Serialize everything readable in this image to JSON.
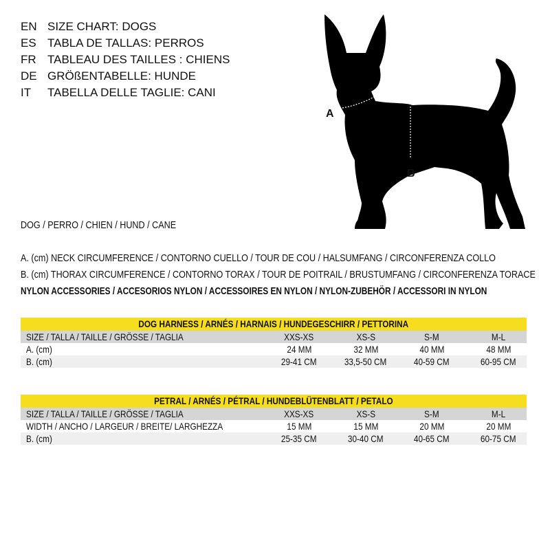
{
  "titles": [
    {
      "code": "EN",
      "text": "SIZE CHART: DOGS"
    },
    {
      "code": "ES",
      "text": "TABLA DE TALLAS: PERROS"
    },
    {
      "code": "FR",
      "text": "TABLEAU DES TAILLES : CHIENS"
    },
    {
      "code": "DE",
      "text": "GRÖßENTABELLE: HUNDE"
    },
    {
      "code": "IT",
      "text": "TABELLA DELLE TAGLIE: CANI"
    }
  ],
  "animal_line": "DOG / PERRO / CHIEN / HUND / CANE",
  "legend": {
    "a": "A. (cm) NECK CIRCUMFERENCE / CONTORNO CUELLO / TOUR DE COU / HALSUMFANG / CIRCONFERENZA COLLO",
    "b": "B. (cm) THORAX CIRCUMFERENCE / CONTORNO TORAX / TOUR DE POITRAIL / BRUSTUMFANG / CIRCONFERENZA TORACE",
    "category": "NYLON ACCESSORIES / ACCESORIOS NYLON / ACCESSOIRES EN NYLON / NYLON-ZUBEHÖR / ACCESSORI IN NYLON"
  },
  "diagram": {
    "label_a": "A",
    "label_b": "B"
  },
  "colors": {
    "title_bar": "#f6dd1d",
    "header_row": "#d5d5d5",
    "alt_row": "#efefef"
  },
  "tables": [
    {
      "title": "DOG HARNESS / ARNÉS / HARNAIS / HUNDEGESCHIRR / PETTORINA",
      "header": {
        "label": "SIZE / TALLA / TAILLE / GRÖSSE / TAGLIA",
        "cells": [
          "XXS-XS",
          "XS-S",
          "S-M",
          "M-L"
        ]
      },
      "rows": [
        {
          "label": "A. (cm)",
          "cells": [
            "24 MM",
            "32 MM",
            "40 MM",
            "48 MM"
          ]
        },
        {
          "label": "B. (cm)",
          "cells": [
            "29-41 CM",
            "33,5-50 CM",
            "40-59 CM",
            "60-95 CM"
          ]
        }
      ]
    },
    {
      "title": "PETRAL / ARNÉS  / PÉTRAL / HUNDEBLÜTENBLATT / PETALO",
      "header": {
        "label": "SIZE / TALLA / TAILLE / GRÖSSE / TAGLIA",
        "cells": [
          "XXS-XS",
          "XS-S",
          "S-M",
          "M-L"
        ]
      },
      "rows": [
        {
          "label": "WIDTH / ANCHO / LARGEUR / BREITE/ LARGHEZZA",
          "cells": [
            "15 MM",
            "15 MM",
            "20 MM",
            "20 MM"
          ]
        },
        {
          "label": "B. (cm)",
          "cells": [
            "25-35 CM",
            "30-40 CM",
            "40-65 CM",
            "60-75 CM"
          ]
        }
      ]
    }
  ]
}
